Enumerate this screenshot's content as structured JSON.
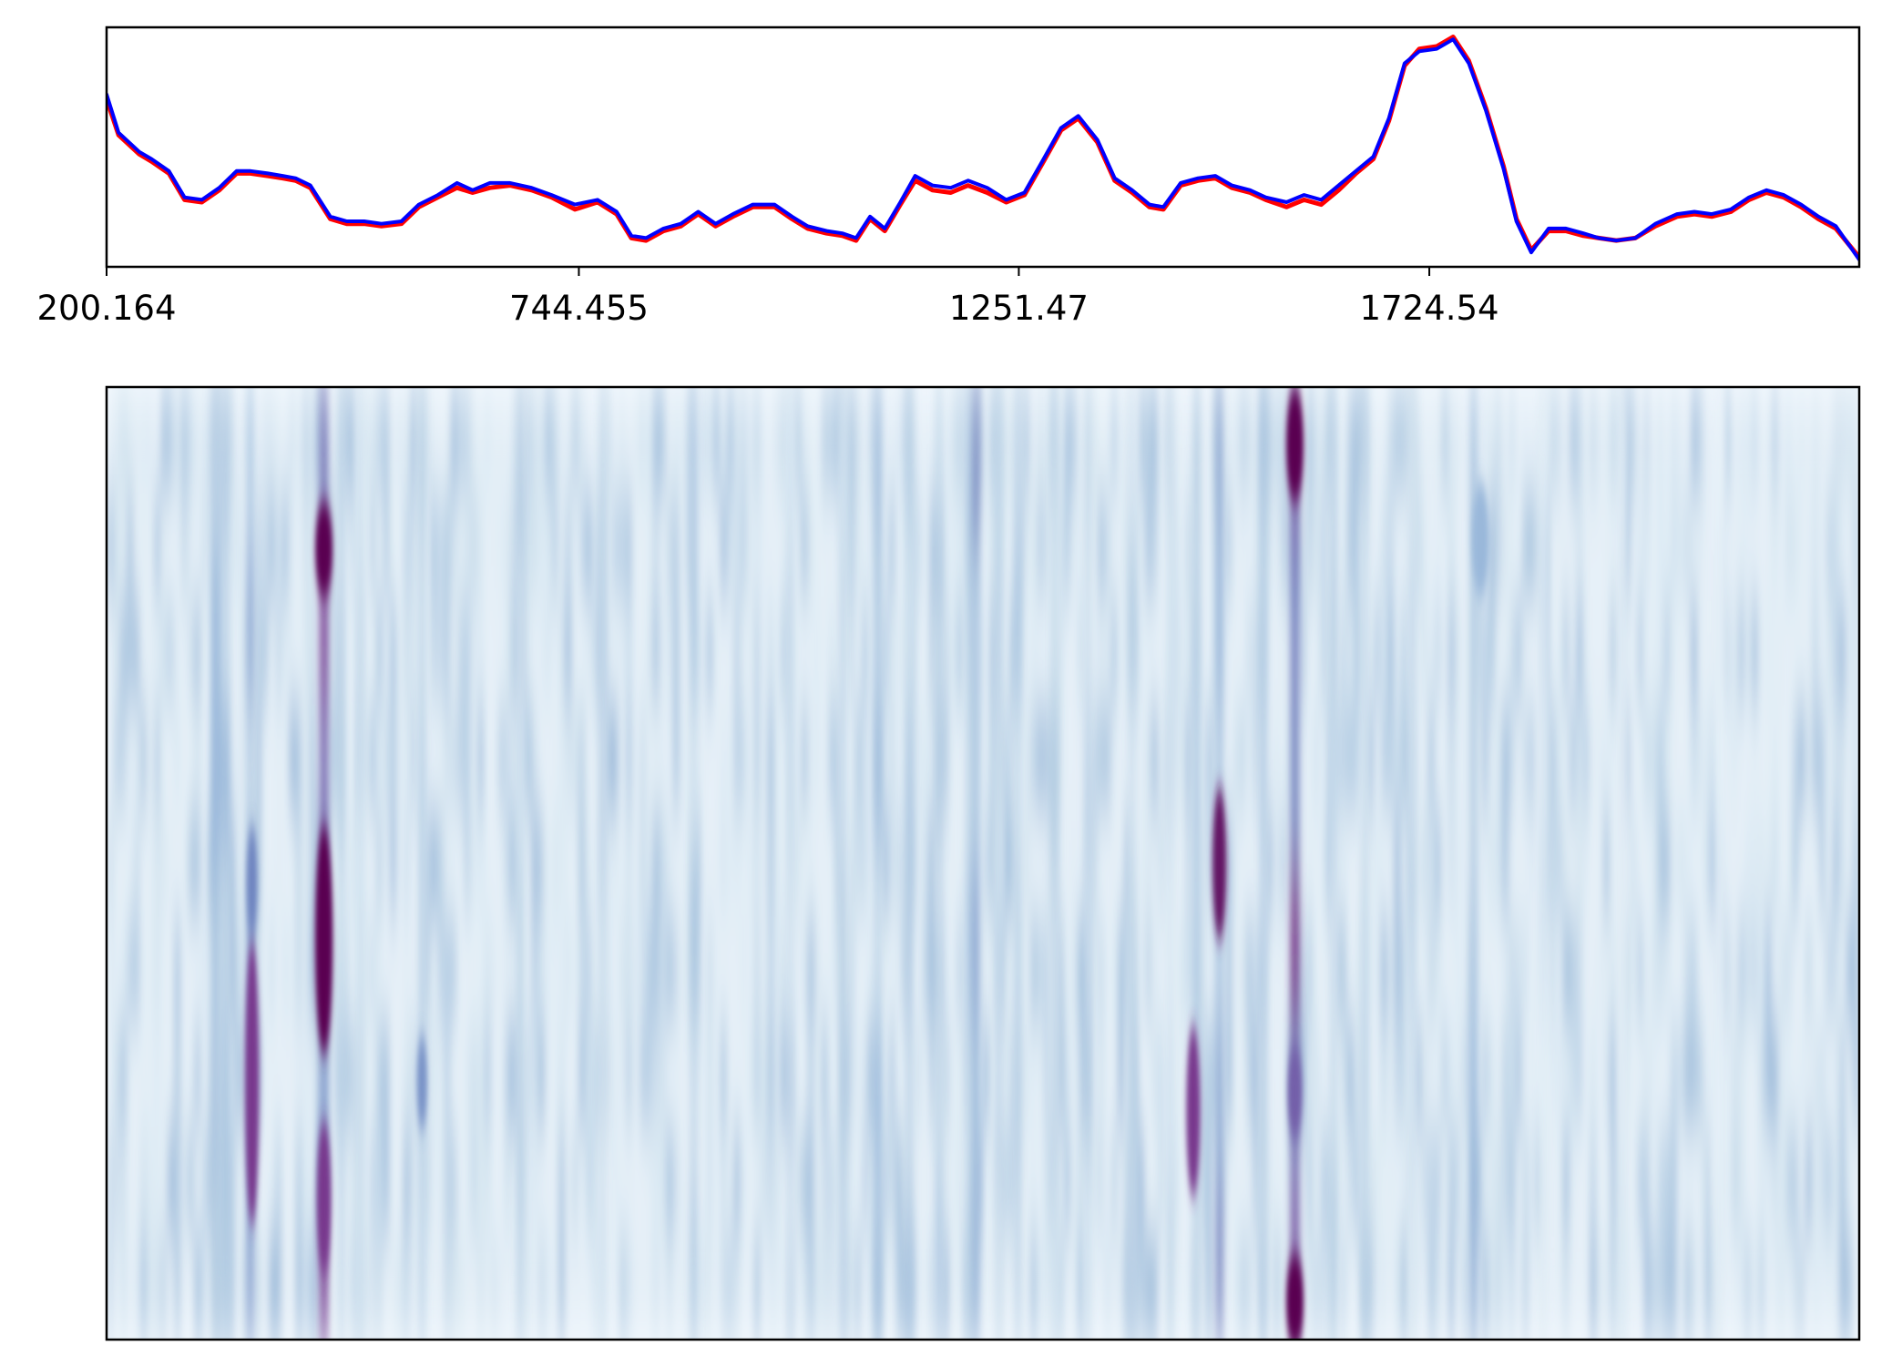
{
  "chart_data": [
    {
      "type": "line",
      "xlabel": "",
      "ylabel": "",
      "xlim": [
        200.164,
        2220
      ],
      "ylim": [
        0,
        1
      ],
      "ticks": [
        {
          "value": 200.164,
          "label": "200.164"
        },
        {
          "value": 744.455,
          "label": "744.455"
        },
        {
          "value": 1251.47,
          "label": "1251.47"
        },
        {
          "value": 1724.54,
          "label": "1724.54"
        }
      ],
      "grid": false,
      "legend": "none",
      "colors": {
        "red": "#ff0000",
        "blue": "#0000ff"
      },
      "series": [
        {
          "color": "#ff0000",
          "points": [
            [
              200.164,
              0.7
            ],
            [
              214,
              0.55
            ],
            [
              238,
              0.47
            ],
            [
              252,
              0.44
            ],
            [
              272,
              0.39
            ],
            [
              290,
              0.28
            ],
            [
              310,
              0.27
            ],
            [
              330,
              0.32
            ],
            [
              350,
              0.39
            ],
            [
              366,
              0.39
            ],
            [
              386,
              0.38
            ],
            [
              403,
              0.37
            ],
            [
              418,
              0.36
            ],
            [
              435,
              0.33
            ],
            [
              458,
              0.2
            ],
            [
              477,
              0.18
            ],
            [
              497,
              0.18
            ],
            [
              517,
              0.17
            ],
            [
              540,
              0.18
            ],
            [
              560,
              0.25
            ],
            [
              582,
              0.29
            ],
            [
              604,
              0.33
            ],
            [
              622,
              0.31
            ],
            [
              642,
              0.33
            ],
            [
              665,
              0.34
            ],
            [
              690,
              0.32
            ],
            [
              713,
              0.29
            ],
            [
              740,
              0.24
            ],
            [
              766,
              0.27
            ],
            [
              788,
              0.22
            ],
            [
              805,
              0.12
            ],
            [
              822,
              0.11
            ],
            [
              842,
              0.15
            ],
            [
              862,
              0.17
            ],
            [
              882,
              0.22
            ],
            [
              902,
              0.17
            ],
            [
              922,
              0.21
            ],
            [
              945,
              0.25
            ],
            [
              970,
              0.25
            ],
            [
              990,
              0.2
            ],
            [
              1008,
              0.16
            ],
            [
              1030,
              0.14
            ],
            [
              1048,
              0.13
            ],
            [
              1064,
              0.11
            ],
            [
              1080,
              0.2
            ],
            [
              1097,
              0.15
            ],
            [
              1115,
              0.26
            ],
            [
              1132,
              0.36
            ],
            [
              1152,
              0.32
            ],
            [
              1173,
              0.31
            ],
            [
              1193,
              0.34
            ],
            [
              1215,
              0.31
            ],
            [
              1237,
              0.27
            ],
            [
              1258,
              0.3
            ],
            [
              1280,
              0.44
            ],
            [
              1300,
              0.57
            ],
            [
              1320,
              0.62
            ],
            [
              1342,
              0.52
            ],
            [
              1362,
              0.36
            ],
            [
              1382,
              0.31
            ],
            [
              1402,
              0.25
            ],
            [
              1418,
              0.24
            ],
            [
              1438,
              0.34
            ],
            [
              1458,
              0.36
            ],
            [
              1478,
              0.37
            ],
            [
              1497,
              0.33
            ],
            [
              1518,
              0.31
            ],
            [
              1536,
              0.28
            ],
            [
              1560,
              0.25
            ],
            [
              1580,
              0.28
            ],
            [
              1600,
              0.26
            ],
            [
              1620,
              0.32
            ],
            [
              1640,
              0.39
            ],
            [
              1660,
              0.45
            ],
            [
              1678,
              0.61
            ],
            [
              1696,
              0.84
            ],
            [
              1713,
              0.91
            ],
            [
              1733,
              0.92
            ],
            [
              1752,
              0.96
            ],
            [
              1770,
              0.86
            ],
            [
              1790,
              0.66
            ],
            [
              1810,
              0.42
            ],
            [
              1825,
              0.2
            ],
            [
              1842,
              0.07
            ],
            [
              1862,
              0.15
            ],
            [
              1882,
              0.15
            ],
            [
              1902,
              0.13
            ],
            [
              1920,
              0.12
            ],
            [
              1940,
              0.11
            ],
            [
              1962,
              0.12
            ],
            [
              1985,
              0.17
            ],
            [
              2010,
              0.21
            ],
            [
              2030,
              0.22
            ],
            [
              2050,
              0.21
            ],
            [
              2072,
              0.23
            ],
            [
              2093,
              0.28
            ],
            [
              2113,
              0.31
            ],
            [
              2133,
              0.29
            ],
            [
              2153,
              0.25
            ],
            [
              2173,
              0.2
            ],
            [
              2193,
              0.16
            ],
            [
              2220,
              0.04
            ]
          ]
        },
        {
          "color": "#0000ff",
          "points": [
            [
              200.164,
              0.72
            ],
            [
              214,
              0.56
            ],
            [
              238,
              0.48
            ],
            [
              252,
              0.45
            ],
            [
              272,
              0.4
            ],
            [
              290,
              0.29
            ],
            [
              310,
              0.28
            ],
            [
              330,
              0.33
            ],
            [
              350,
              0.4
            ],
            [
              366,
              0.4
            ],
            [
              386,
              0.39
            ],
            [
              403,
              0.38
            ],
            [
              418,
              0.37
            ],
            [
              435,
              0.34
            ],
            [
              458,
              0.21
            ],
            [
              477,
              0.19
            ],
            [
              497,
              0.19
            ],
            [
              517,
              0.18
            ],
            [
              540,
              0.19
            ],
            [
              560,
              0.26
            ],
            [
              582,
              0.3
            ],
            [
              604,
              0.35
            ],
            [
              622,
              0.32
            ],
            [
              642,
              0.35
            ],
            [
              665,
              0.35
            ],
            [
              690,
              0.33
            ],
            [
              713,
              0.3
            ],
            [
              740,
              0.26
            ],
            [
              766,
              0.28
            ],
            [
              788,
              0.23
            ],
            [
              805,
              0.13
            ],
            [
              822,
              0.12
            ],
            [
              842,
              0.16
            ],
            [
              862,
              0.18
            ],
            [
              882,
              0.23
            ],
            [
              902,
              0.18
            ],
            [
              922,
              0.22
            ],
            [
              945,
              0.26
            ],
            [
              970,
              0.26
            ],
            [
              990,
              0.21
            ],
            [
              1008,
              0.17
            ],
            [
              1030,
              0.15
            ],
            [
              1048,
              0.14
            ],
            [
              1064,
              0.12
            ],
            [
              1080,
              0.21
            ],
            [
              1097,
              0.16
            ],
            [
              1115,
              0.27
            ],
            [
              1132,
              0.38
            ],
            [
              1152,
              0.34
            ],
            [
              1173,
              0.33
            ],
            [
              1193,
              0.36
            ],
            [
              1215,
              0.33
            ],
            [
              1237,
              0.28
            ],
            [
              1258,
              0.31
            ],
            [
              1280,
              0.45
            ],
            [
              1300,
              0.58
            ],
            [
              1320,
              0.63
            ],
            [
              1342,
              0.53
            ],
            [
              1362,
              0.37
            ],
            [
              1382,
              0.32
            ],
            [
              1402,
              0.26
            ],
            [
              1418,
              0.25
            ],
            [
              1438,
              0.35
            ],
            [
              1458,
              0.37
            ],
            [
              1478,
              0.38
            ],
            [
              1497,
              0.34
            ],
            [
              1518,
              0.32
            ],
            [
              1536,
              0.29
            ],
            [
              1560,
              0.27
            ],
            [
              1580,
              0.3
            ],
            [
              1600,
              0.28
            ],
            [
              1620,
              0.34
            ],
            [
              1640,
              0.4
            ],
            [
              1660,
              0.46
            ],
            [
              1678,
              0.62
            ],
            [
              1696,
              0.85
            ],
            [
              1713,
              0.9
            ],
            [
              1733,
              0.91
            ],
            [
              1752,
              0.95
            ],
            [
              1770,
              0.85
            ],
            [
              1790,
              0.65
            ],
            [
              1810,
              0.41
            ],
            [
              1825,
              0.19
            ],
            [
              1842,
              0.06
            ],
            [
              1862,
              0.16
            ],
            [
              1882,
              0.16
            ],
            [
              1902,
              0.14
            ],
            [
              1920,
              0.12
            ],
            [
              1940,
              0.11
            ],
            [
              1962,
              0.12
            ],
            [
              1985,
              0.18
            ],
            [
              2010,
              0.22
            ],
            [
              2030,
              0.23
            ],
            [
              2050,
              0.22
            ],
            [
              2072,
              0.24
            ],
            [
              2093,
              0.29
            ],
            [
              2113,
              0.32
            ],
            [
              2133,
              0.3
            ],
            [
              2153,
              0.26
            ],
            [
              2173,
              0.21
            ],
            [
              2193,
              0.17
            ],
            [
              2220,
              0.03
            ]
          ]
        }
      ]
    },
    {
      "type": "heatmap",
      "xlabel": "",
      "ylabel": "",
      "xlim": [
        0,
        1
      ],
      "ylim": [
        0,
        1
      ],
      "colormap": [
        "#f7fbff",
        "#dbe9f3",
        "#b2cbe2",
        "#8fb0d6",
        "#6a7fbd",
        "#7b3f94",
        "#5a0051"
      ],
      "baseline": 0.1,
      "bands": [
        {
          "x": 0.062,
          "w": 0.005,
          "v": 0.55
        },
        {
          "x": 0.068,
          "w": 0.005,
          "v": 0.45
        },
        {
          "x": 0.082,
          "w": 0.004,
          "v": 0.6
        },
        {
          "x": 0.124,
          "w": 0.005,
          "v": 0.85
        },
        {
          "x": 0.134,
          "w": 0.004,
          "v": 0.4
        },
        {
          "x": 0.145,
          "w": 0.004,
          "v": 0.3
        },
        {
          "x": 0.18,
          "w": 0.004,
          "v": 0.35
        },
        {
          "x": 0.236,
          "w": 0.004,
          "v": 0.35
        },
        {
          "x": 0.283,
          "w": 0.004,
          "v": 0.3
        },
        {
          "x": 0.335,
          "w": 0.004,
          "v": 0.4
        },
        {
          "x": 0.39,
          "w": 0.004,
          "v": 0.3
        },
        {
          "x": 0.42,
          "w": 0.004,
          "v": 0.35
        },
        {
          "x": 0.44,
          "w": 0.005,
          "v": 0.45
        },
        {
          "x": 0.458,
          "w": 0.004,
          "v": 0.4
        },
        {
          "x": 0.475,
          "w": 0.004,
          "v": 0.4
        },
        {
          "x": 0.492,
          "w": 0.004,
          "v": 0.4
        },
        {
          "x": 0.496,
          "w": 0.004,
          "v": 0.7
        },
        {
          "x": 0.509,
          "w": 0.004,
          "v": 0.35
        },
        {
          "x": 0.52,
          "w": 0.004,
          "v": 0.45
        },
        {
          "x": 0.541,
          "w": 0.004,
          "v": 0.35
        },
        {
          "x": 0.56,
          "w": 0.004,
          "v": 0.35
        },
        {
          "x": 0.585,
          "w": 0.004,
          "v": 0.35
        },
        {
          "x": 0.607,
          "w": 0.004,
          "v": 0.3
        },
        {
          "x": 0.622,
          "w": 0.004,
          "v": 0.45
        },
        {
          "x": 0.635,
          "w": 0.004,
          "v": 0.7
        },
        {
          "x": 0.66,
          "w": 0.004,
          "v": 0.4
        },
        {
          "x": 0.678,
          "w": 0.005,
          "v": 0.95
        },
        {
          "x": 0.7,
          "w": 0.004,
          "v": 0.35
        },
        {
          "x": 0.718,
          "w": 0.004,
          "v": 0.4
        },
        {
          "x": 0.745,
          "w": 0.004,
          "v": 0.3
        },
        {
          "x": 0.78,
          "w": 0.004,
          "v": 0.55
        },
        {
          "x": 0.82,
          "w": 0.004,
          "v": 0.2
        },
        {
          "x": 0.865,
          "w": 0.004,
          "v": 0.2
        },
        {
          "x": 0.92,
          "w": 0.004,
          "v": 0.15
        }
      ],
      "spots": [
        {
          "x": 0.124,
          "y": 0.17,
          "rx": 0.005,
          "ry": 0.05,
          "v": 1.0
        },
        {
          "x": 0.124,
          "y": 0.58,
          "rx": 0.005,
          "ry": 0.12,
          "v": 1.0
        },
        {
          "x": 0.124,
          "y": 0.85,
          "rx": 0.004,
          "ry": 0.08,
          "v": 0.85
        },
        {
          "x": 0.083,
          "y": 0.73,
          "rx": 0.004,
          "ry": 0.15,
          "v": 0.85
        },
        {
          "x": 0.083,
          "y": 0.52,
          "rx": 0.003,
          "ry": 0.06,
          "v": 0.65
        },
        {
          "x": 0.18,
          "y": 0.73,
          "rx": 0.003,
          "ry": 0.05,
          "v": 0.6
        },
        {
          "x": 0.678,
          "y": 0.06,
          "rx": 0.005,
          "ry": 0.06,
          "v": 1.0
        },
        {
          "x": 0.678,
          "y": 0.96,
          "rx": 0.005,
          "ry": 0.05,
          "v": 1.0
        },
        {
          "x": 0.678,
          "y": 0.74,
          "rx": 0.004,
          "ry": 0.05,
          "v": 0.75
        },
        {
          "x": 0.635,
          "y": 0.5,
          "rx": 0.004,
          "ry": 0.08,
          "v": 0.95
        },
        {
          "x": 0.62,
          "y": 0.76,
          "rx": 0.004,
          "ry": 0.09,
          "v": 0.85
        },
        {
          "x": 0.784,
          "y": 0.16,
          "rx": 0.005,
          "ry": 0.06,
          "v": 0.45
        }
      ]
    }
  ]
}
